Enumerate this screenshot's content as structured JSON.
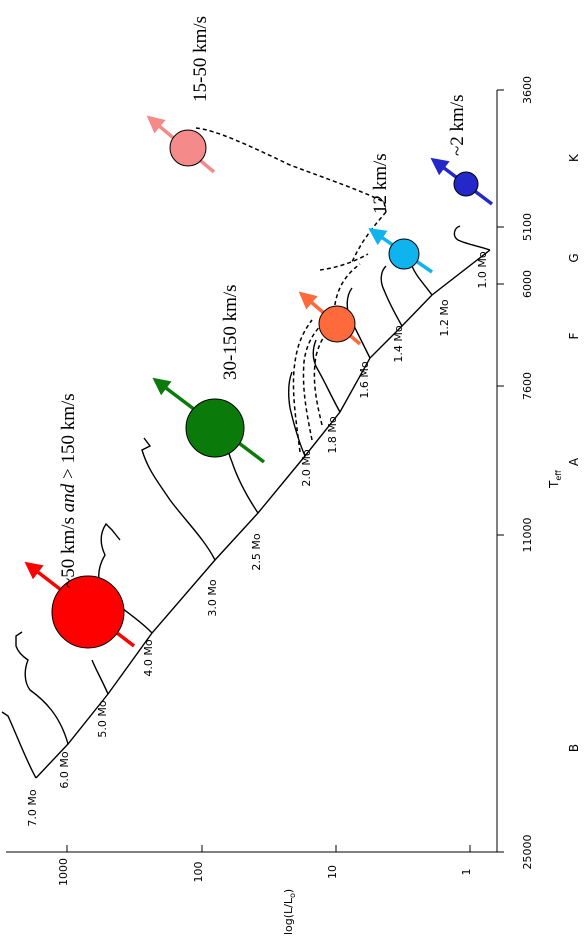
{
  "axes": {
    "y_label_main": "log(L/L",
    "y_label_sun": "o",
    "y_label_close": ")",
    "x_label_main": "T",
    "x_label_sub": "eff",
    "y_ticks": [
      "1",
      "10",
      "100",
      "1000"
    ],
    "x_ticks": [
      "25000",
      "11000",
      "7600",
      "6000",
      "5100",
      "3600"
    ],
    "spectral_classes": [
      "B",
      "A",
      "F",
      "G",
      "K"
    ]
  },
  "masses": [
    "7.0 Mo",
    "6.0 Mo",
    "5.0 Mo",
    "4.0 Mo",
    "3.0 Mo",
    "2.5 Mo",
    "2.0 Mo",
    "1.8 Mo",
    "1.6 Mo",
    "1.4 Mo",
    "1.2 Mo",
    "1.0 Mo"
  ],
  "stars": [
    {
      "velocity_prefix": "~50 km/s ",
      "velocity_italic": "and",
      "velocity_suffix": "  > 150 km/s",
      "color": "#ff0000"
    },
    {
      "velocity": "30-150 km/s",
      "color": "#0a7a0a"
    },
    {
      "velocity": "",
      "color": "#ff6a3c"
    },
    {
      "velocity": "12 km/s",
      "color": "#0fb4ee"
    },
    {
      "velocity": "15-50 km/s",
      "color": "#f48a8a"
    },
    {
      "velocity": "~2 km/s",
      "color": "#2428c8"
    }
  ]
}
